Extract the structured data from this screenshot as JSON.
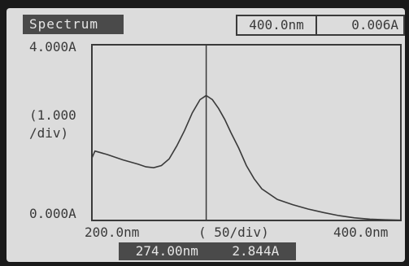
{
  "header": {
    "mode_title": "Spectrum",
    "cursor_wavelength": "400.0nm",
    "cursor_absorbance": "0.006A"
  },
  "axes": {
    "y_max_label": "4.000A",
    "y_scale_label_1": "(1.000",
    "y_scale_label_2": "/div)",
    "y_min_label": "0.000A",
    "x_min_label": "200.0nm",
    "x_scale_label": "( 50/div)",
    "x_max_label": "400.0nm"
  },
  "readout": {
    "wavelength": "274.00nm",
    "absorbance": "2.844A"
  },
  "chart_data": {
    "type": "line",
    "x": [
      200,
      202,
      205,
      210,
      220,
      230,
      235,
      240,
      245,
      250,
      255,
      260,
      265,
      270,
      274,
      278,
      282,
      286,
      290,
      295,
      300,
      305,
      310,
      320,
      330,
      340,
      350,
      360,
      370,
      380,
      390,
      400
    ],
    "series": [
      {
        "values": [
          1.42,
          1.58,
          1.55,
          1.5,
          1.38,
          1.28,
          1.22,
          1.2,
          1.25,
          1.4,
          1.7,
          2.05,
          2.45,
          2.75,
          2.844,
          2.75,
          2.55,
          2.3,
          2.0,
          1.65,
          1.25,
          0.95,
          0.72,
          0.48,
          0.36,
          0.26,
          0.18,
          0.11,
          0.06,
          0.03,
          0.015,
          0.006
        ]
      }
    ],
    "xlim": [
      200,
      400
    ],
    "ylim": [
      0,
      4
    ],
    "cursor_x": 274,
    "grid": false
  }
}
